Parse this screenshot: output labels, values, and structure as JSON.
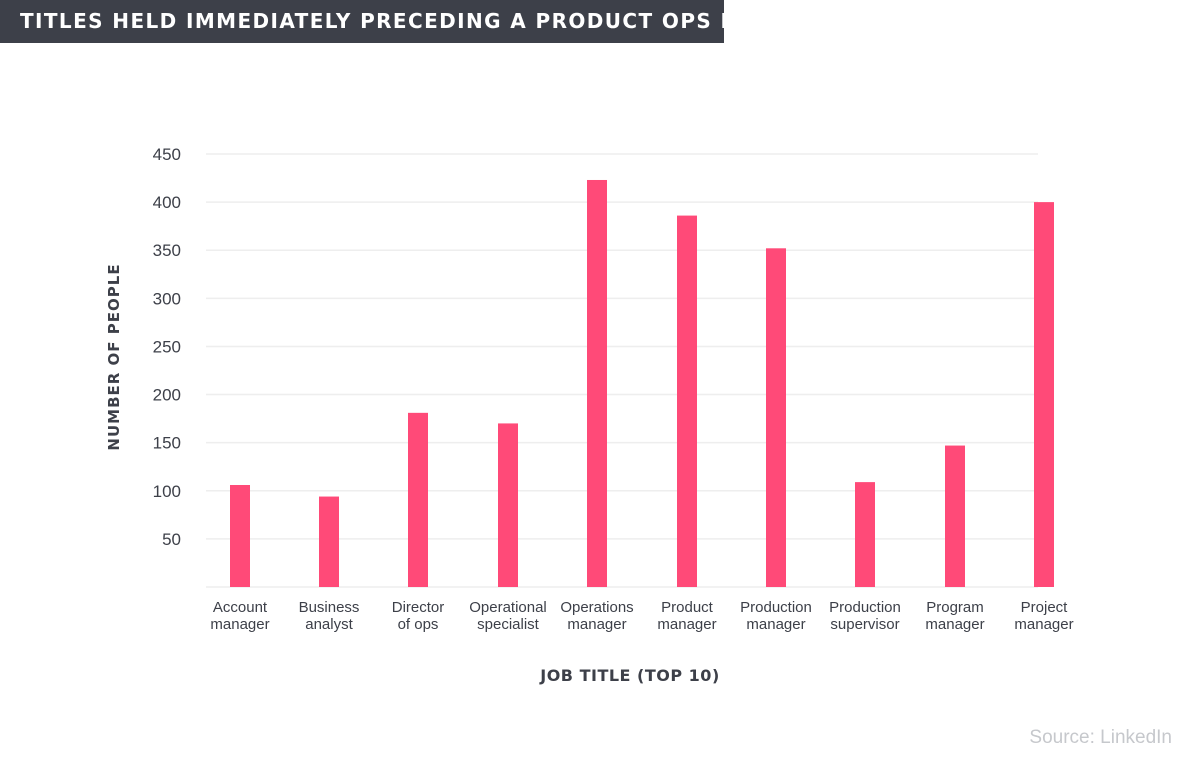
{
  "header": {
    "title": "TITLES HELD IMMEDIATELY PRECEDING A PRODUCT OPS ROLE"
  },
  "chart_data": {
    "type": "bar",
    "title": "TITLES HELD IMMEDIATELY PRECEDING A PRODUCT OPS ROLE",
    "xlabel": "JOB TITLE (TOP 10)",
    "ylabel": "NUMBER OF PEOPLE",
    "categories": [
      [
        "Account",
        "manager"
      ],
      [
        "Business",
        "analyst"
      ],
      [
        "Director",
        "of ops"
      ],
      [
        "Operational",
        "specialist"
      ],
      [
        "Operations",
        "manager"
      ],
      [
        "Product",
        "manager"
      ],
      [
        "Production",
        "manager"
      ],
      [
        "Production",
        "supervisor"
      ],
      [
        "Program",
        "manager"
      ],
      [
        "Project",
        "manager"
      ]
    ],
    "values": [
      106,
      94,
      181,
      170,
      423,
      386,
      352,
      109,
      147,
      400
    ],
    "ylim": [
      0,
      450
    ],
    "yticks": [
      50,
      100,
      150,
      200,
      250,
      300,
      350,
      400,
      450
    ],
    "grid": true,
    "legend": "none",
    "bar_color": "#ff4a78",
    "grid_color": "#eeeeee",
    "text_color": "#3d4049"
  },
  "footer": {
    "source": "Source: LinkedIn"
  }
}
